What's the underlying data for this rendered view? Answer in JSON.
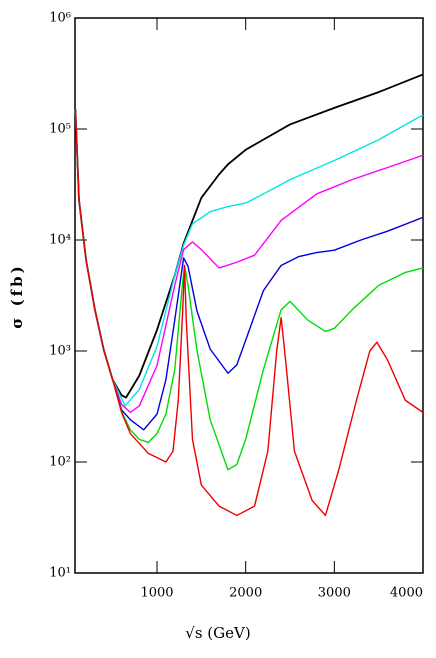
{
  "chart_data": {
    "type": "line",
    "x_label": "√s (GeV)",
    "y_label": "σ (fb)",
    "log_y": true,
    "xlim": [
      75,
      4000
    ],
    "ylim": [
      10,
      1000000
    ],
    "xticks": [
      1000,
      2000,
      3000,
      4000
    ],
    "yticks": [
      {
        "value": 10,
        "label": "10¹"
      },
      {
        "value": 100,
        "label": "10²"
      },
      {
        "value": 1000,
        "label": "10³"
      },
      {
        "value": 10000,
        "label": "10⁴"
      },
      {
        "value": 100000,
        "label": "10⁵"
      },
      {
        "value": 1000000,
        "label": "10⁶"
      }
    ],
    "series": [
      {
        "color": "#000000",
        "x": [
          80,
          120,
          200,
          300,
          400,
          500,
          600,
          650,
          800,
          1000,
          1200,
          1300,
          1500,
          1700,
          1800,
          2000,
          2500,
          3000,
          3500,
          4000
        ],
        "values": [
          150000,
          23000,
          6600,
          2350,
          1020,
          550,
          400,
          380,
          600,
          1550,
          4800,
          9300,
          24000,
          39000,
          48000,
          65000,
          110000,
          155000,
          215000,
          310000
        ]
      },
      {
        "color": "#00e5e5",
        "x": [
          80,
          120,
          200,
          300,
          400,
          500,
          640,
          800,
          1000,
          1200,
          1300,
          1400,
          1600,
          1800,
          2000,
          2200,
          2500,
          3000,
          3500,
          4000
        ],
        "values": [
          150000,
          23000,
          6600,
          2350,
          1020,
          550,
          320,
          450,
          1100,
          4800,
          9000,
          14000,
          18000,
          20000,
          21500,
          26000,
          35000,
          52000,
          80000,
          134000
        ]
      },
      {
        "color": "#ff00ff",
        "x": [
          80,
          120,
          200,
          300,
          400,
          500,
          600,
          700,
          800,
          1000,
          1200,
          1300,
          1400,
          1500,
          1700,
          1900,
          2100,
          2400,
          2800,
          3200,
          3600,
          4000
        ],
        "values": [
          150000,
          23000,
          6600,
          2350,
          1020,
          550,
          330,
          280,
          320,
          740,
          3900,
          8200,
          9600,
          8200,
          5600,
          6300,
          7300,
          15000,
          26000,
          35000,
          45000,
          58000
        ]
      },
      {
        "color": "#0000dd",
        "x": [
          80,
          120,
          200,
          300,
          400,
          500,
          600,
          700,
          850,
          1000,
          1100,
          1200,
          1300,
          1350,
          1450,
          1600,
          1800,
          1900,
          2000,
          2200,
          2400,
          2600,
          2800,
          3000,
          3300,
          3600,
          4000
        ],
        "values": [
          150000,
          23000,
          6600,
          2350,
          1020,
          550,
          295,
          240,
          195,
          270,
          550,
          1900,
          6900,
          5800,
          2300,
          1040,
          630,
          750,
          1250,
          3500,
          5900,
          7100,
          7700,
          8100,
          10000,
          12000,
          16000
        ]
      },
      {
        "color": "#00dd00",
        "x": [
          80,
          120,
          200,
          300,
          400,
          500,
          600,
          700,
          800,
          900,
          1000,
          1100,
          1200,
          1280,
          1310,
          1350,
          1450,
          1600,
          1800,
          1900,
          2000,
          2200,
          2400,
          2500,
          2700,
          2900,
          3000,
          3200,
          3500,
          3800,
          4000
        ],
        "values": [
          150000,
          23000,
          6600,
          2350,
          1020,
          550,
          285,
          195,
          160,
          150,
          180,
          270,
          680,
          3500,
          5900,
          3900,
          1020,
          240,
          85,
          95,
          160,
          680,
          2350,
          2800,
          1900,
          1500,
          1600,
          2350,
          3900,
          5100,
          5600
        ]
      },
      {
        "color": "#ee0000",
        "x": [
          80,
          120,
          200,
          300,
          400,
          500,
          600,
          700,
          900,
          1100,
          1180,
          1240,
          1290,
          1310,
          1330,
          1400,
          1500,
          1700,
          1900,
          2100,
          2250,
          2350,
          2400,
          2450,
          2550,
          2750,
          2900,
          3050,
          3250,
          3400,
          3480,
          3600,
          3800,
          4000
        ],
        "values": [
          150000,
          23000,
          6600,
          2350,
          1020,
          550,
          280,
          180,
          120,
          100,
          125,
          360,
          2350,
          5900,
          1900,
          160,
          62,
          40,
          33,
          40,
          125,
          1000,
          2000,
          830,
          125,
          45,
          33,
          85,
          360,
          1000,
          1200,
          830,
          360,
          280
        ]
      }
    ]
  }
}
